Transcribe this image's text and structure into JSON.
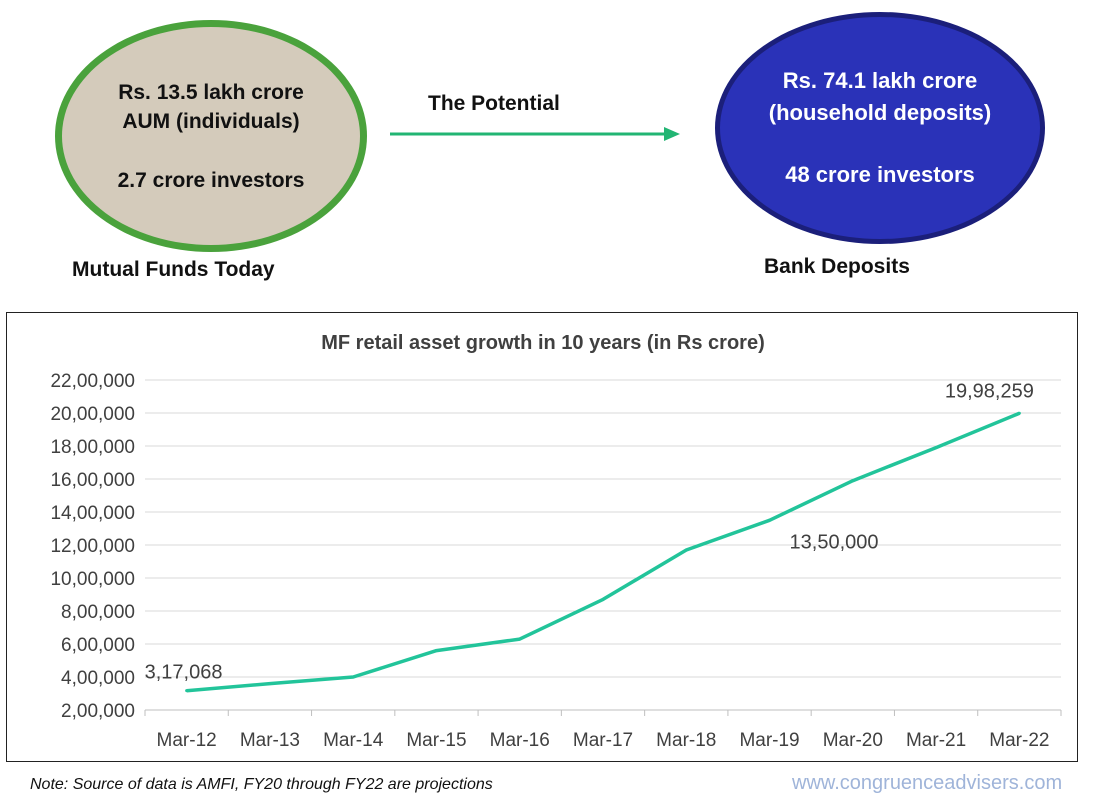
{
  "palette": {
    "mf_fill": "#d4cbbb",
    "mf_border": "#4aa23c",
    "bank_fill": "#2a32b8",
    "bank_border": "#1b1f7a",
    "arrow": "#22b573",
    "line": "#22c49a",
    "grid": "#d9d9d9",
    "url": "#9fb4d9"
  },
  "mutual_funds": {
    "line1": "Rs. 13.5  lakh crore",
    "line2": "AUM (individuals)",
    "line3": "2.7 crore investors",
    "caption": "Mutual Funds Today"
  },
  "potential": {
    "label": "The Potential"
  },
  "bank": {
    "line1": "Rs. 74.1 lakh crore",
    "line2": "(household deposits)",
    "line3": "48 crore investors",
    "caption": "Bank Deposits"
  },
  "chart_data": {
    "type": "line",
    "title": "MF retail asset growth in 10 years (in Rs crore)",
    "categories": [
      "Mar-12",
      "Mar-13",
      "Mar-14",
      "Mar-15",
      "Mar-16",
      "Mar-17",
      "Mar-18",
      "Mar-19",
      "Mar-20",
      "Mar-21",
      "Mar-22"
    ],
    "values": [
      317068,
      360000,
      400000,
      560000,
      630000,
      870000,
      1170000,
      1350000,
      1590000,
      1790000,
      1998259
    ],
    "ylim": [
      200000,
      2200000
    ],
    "yticks": [
      200000,
      400000,
      600000,
      800000,
      1000000,
      1200000,
      1400000,
      1600000,
      1800000,
      2000000,
      2200000
    ],
    "ytick_labels": [
      "2,00,000",
      "4,00,000",
      "6,00,000",
      "8,00,000",
      "10,00,000",
      "12,00,000",
      "14,00,000",
      "16,00,000",
      "18,00,000",
      "20,00,000",
      "22,00,000"
    ],
    "data_labels": [
      {
        "index": 0,
        "text": "3,17,068"
      },
      {
        "index": 7,
        "text": "13,50,000"
      },
      {
        "index": 10,
        "text": "19,98,259"
      }
    ],
    "grid": true,
    "legend": "none",
    "xlabel": "",
    "ylabel": ""
  },
  "note": "Note: Source of data is AMFI, FY20 through FY22 are projections",
  "url": "www.congruenceadvisers.com"
}
